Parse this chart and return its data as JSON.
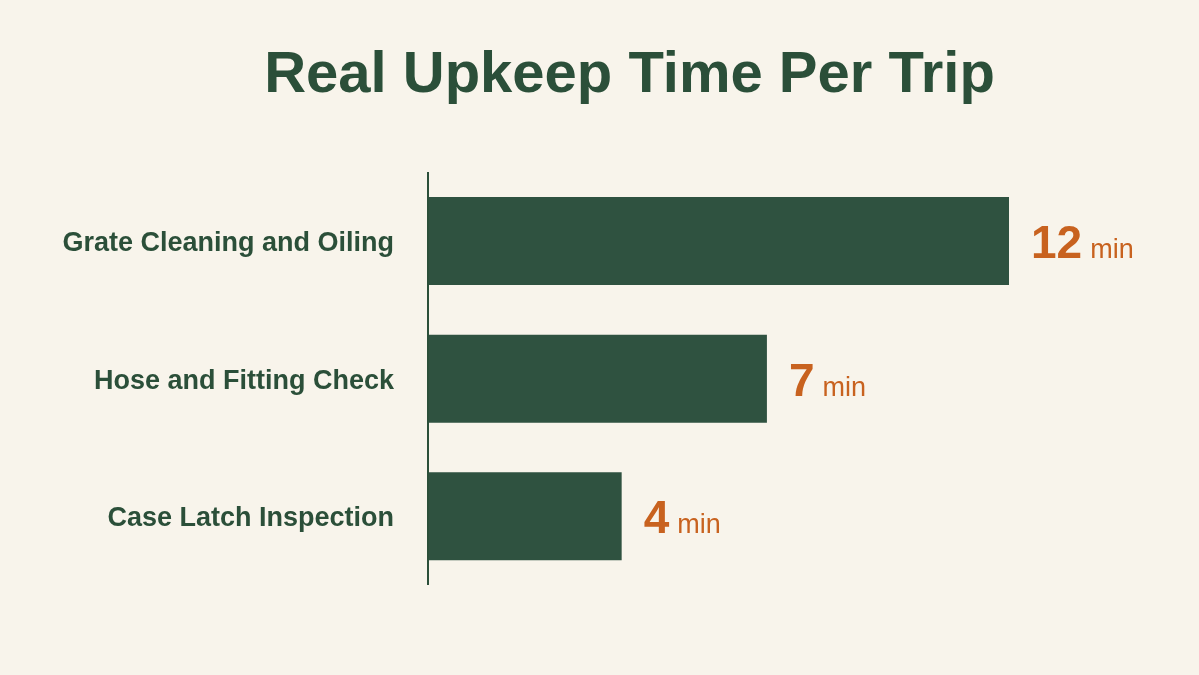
{
  "chart_data": {
    "type": "bar",
    "orientation": "horizontal",
    "title": "Real Upkeep Time Per Trip",
    "categories": [
      "Grate Cleaning and Oiling",
      "Hose and Fitting Check",
      "Case Latch Inspection"
    ],
    "values": [
      12,
      7,
      4
    ],
    "value_labels": [
      "12 min",
      "7 min",
      "4 min"
    ],
    "color": "#2f5240"
  }
}
